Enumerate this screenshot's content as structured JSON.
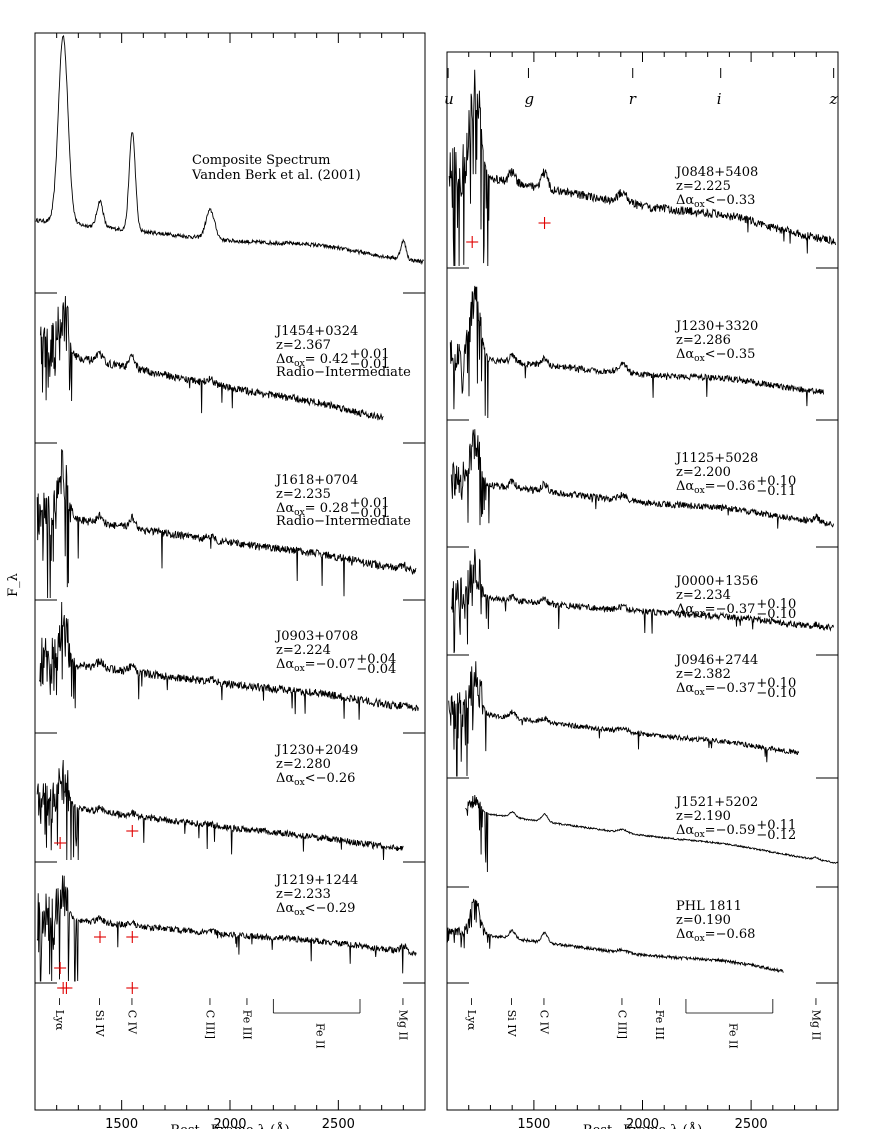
{
  "chart_data": {
    "type": "line",
    "ylabel": "F_λ",
    "xlabel": "Rest−Frame λ (Å)",
    "x_ticks": [
      "1500",
      "2000",
      "2500"
    ],
    "xlim": [
      1100,
      2900
    ],
    "sdss_bands": [
      "u",
      "g",
      "r",
      "i",
      "z"
    ],
    "sdss_band_wavelengths": [
      1105,
      1475,
      1955,
      2360,
      2880
    ],
    "emission_lines": [
      {
        "label": "Lyα",
        "wavelength": 1216
      },
      {
        "label": "Si IV",
        "wavelength": 1400
      },
      {
        "label": "C IV",
        "wavelength": 1549
      },
      {
        "label": "C III]",
        "wavelength": 1909
      },
      {
        "label": "Fe III",
        "wavelength": 2080
      },
      {
        "label": "Fe II",
        "range": [
          2200,
          2600
        ]
      },
      {
        "label": "Mg II",
        "wavelength": 2800
      }
    ],
    "panels": [
      {
        "id": "composite",
        "column": 0,
        "name": "Composite Spectrum",
        "ref": "Vanden Berk et al. (2001)"
      },
      {
        "id": "J1454+0324",
        "column": 0,
        "name": "J1454+0324",
        "z": "z=2.367",
        "daox": "0.42",
        "err_up": "+0.01",
        "err_dn": "−0.01",
        "note": "Radio−Intermediate",
        "limit": false
      },
      {
        "id": "J1618+0704",
        "column": 0,
        "name": "J1618+0704",
        "z": "z=2.235",
        "daox": "0.28",
        "err_up": "+0.01",
        "err_dn": "−0.01",
        "note": "Radio−Intermediate",
        "limit": false
      },
      {
        "id": "J0903+0708",
        "column": 0,
        "name": "J0903+0708",
        "z": "z=2.224",
        "daox": "−0.07",
        "err_up": "+0.04",
        "err_dn": "−0.04",
        "note": "",
        "limit": false
      },
      {
        "id": "J1230+2049",
        "column": 0,
        "name": "J1230+2049",
        "z": "z=2.280",
        "daox": "−0.26",
        "limit": true,
        "bal_markers": [
          1216,
          1549
        ]
      },
      {
        "id": "J1219+1244",
        "column": 0,
        "name": "J1219+1244",
        "z": "z=2.233",
        "daox": "−0.29",
        "limit": true,
        "bal_markers": [
          1216,
          1400,
          1549
        ]
      },
      {
        "id": "J0848+5408",
        "column": 1,
        "name": "J0848+5408",
        "z": "z=2.225",
        "daox": "−0.33",
        "limit": true,
        "bal_markers": [
          1216,
          1549
        ]
      },
      {
        "id": "J1230+3320",
        "column": 1,
        "name": "J1230+3320",
        "z": "z=2.286",
        "daox": "−0.35",
        "limit": true
      },
      {
        "id": "J1125+5028",
        "column": 1,
        "name": "J1125+5028",
        "z": "z=2.200",
        "daox": "−0.36",
        "err_up": "+0.10",
        "err_dn": "−0.11",
        "limit": false
      },
      {
        "id": "J0000+1356",
        "column": 1,
        "name": "J0000+1356",
        "z": "z=2.234",
        "daox": "−0.37",
        "err_up": "+0.10",
        "err_dn": "−0.10",
        "limit": false
      },
      {
        "id": "J0946+2744",
        "column": 1,
        "name": "J0946+2744",
        "z": "z=2.382",
        "daox": "−0.37",
        "err_up": "+0.10",
        "err_dn": "−0.10",
        "limit": false
      },
      {
        "id": "J1521+5202",
        "column": 1,
        "name": "J1521+5202",
        "z": "z=2.190",
        "daox": "−0.59",
        "err_up": "+0.11",
        "err_dn": "−0.12",
        "limit": false
      },
      {
        "id": "PHL1811",
        "column": 1,
        "name": "PHL 1811",
        "z": "z=0.190",
        "daox": "−0.68",
        "limit": false,
        "sign": "="
      }
    ]
  }
}
